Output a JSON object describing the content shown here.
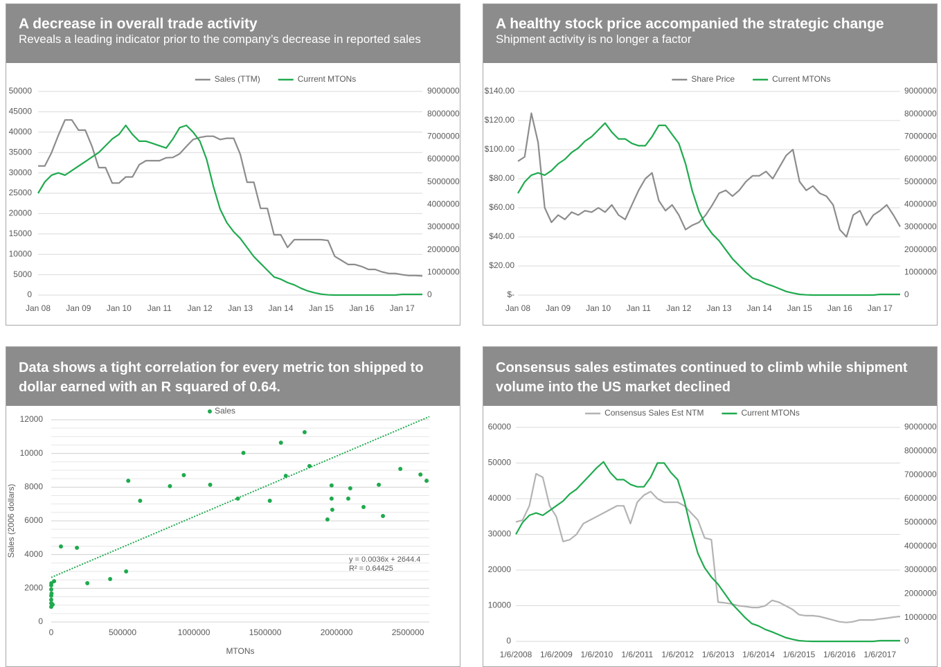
{
  "chart_data": [
    {
      "type": "line",
      "title": "A decrease in overall trade activity",
      "subtitle": "Reveals a leading indicator prior to the company’s decrease in reported sales",
      "categories": [
        "Jan 08",
        null,
        null,
        null,
        null,
        null,
        "Jan 09",
        null,
        null,
        null,
        null,
        null,
        "Jan 10",
        null,
        null,
        null,
        null,
        null,
        "Jan 11",
        null,
        null,
        null,
        null,
        null,
        "Jan 12",
        null,
        null,
        null,
        null,
        null,
        "Jan 13",
        null,
        null,
        null,
        null,
        null,
        "Jan 14",
        null,
        null,
        null,
        null,
        null,
        "Jan 15",
        null,
        null,
        null,
        null,
        null,
        "Jan 16",
        null,
        null,
        null,
        null,
        null,
        "Jan 17",
        null,
        null,
        null
      ],
      "ylim": [
        0,
        50000
      ],
      "yticks": [
        0,
        5000,
        10000,
        15000,
        20000,
        25000,
        30000,
        35000,
        40000,
        45000,
        50000
      ],
      "y2lim": [
        0,
        9000000
      ],
      "y2ticks": [
        0,
        1000000,
        2000000,
        3000000,
        4000000,
        5000000,
        6000000,
        7000000,
        8000000,
        9000000
      ],
      "grid": true,
      "legend": "top",
      "series": [
        {
          "name": "Sales (TTM)",
          "color": "#8c8c8c",
          "values": [
            31700,
            31700,
            35000,
            39200,
            43000,
            43000,
            40500,
            40500,
            36500,
            31300,
            31300,
            27500,
            27500,
            29000,
            29000,
            32000,
            33000,
            33000,
            33000,
            33700,
            33800,
            34700,
            36500,
            38200,
            38700,
            39000,
            39000,
            38200,
            38500,
            38500,
            34500,
            27700,
            27700,
            21300,
            21300,
            14800,
            14800,
            11700,
            13600,
            13600,
            13600,
            13600,
            13600,
            13400,
            9500,
            8500,
            7500,
            7500,
            7000,
            6300,
            6300,
            5700,
            5300,
            5300,
            5000,
            4800,
            4800,
            4700
          ]
        },
        {
          "name": "Current MTONs",
          "color": "#1faa4e",
          "axis": "y2",
          "values": [
            4500000,
            5000000,
            5300000,
            5400000,
            5300000,
            5500000,
            5700000,
            5900000,
            6100000,
            6300000,
            6600000,
            6900000,
            7100000,
            7500000,
            7100000,
            6800000,
            6800000,
            6700000,
            6600000,
            6500000,
            6900000,
            7400000,
            7500000,
            7200000,
            6800000,
            6000000,
            4800000,
            3800000,
            3200000,
            2800000,
            2500000,
            2100000,
            1700000,
            1400000,
            1100000,
            800000,
            700000,
            550000,
            450000,
            300000,
            180000,
            100000,
            40000,
            10000,
            0,
            0,
            0,
            0,
            0,
            0,
            0,
            0,
            0,
            0,
            30000,
            30000,
            30000,
            30000
          ]
        }
      ]
    },
    {
      "type": "line",
      "title": "A healthy stock price accompanied the strategic change",
      "subtitle": "Shipment activity is no longer a factor",
      "categories": [
        "Jan 08",
        null,
        null,
        null,
        null,
        null,
        "Jan 09",
        null,
        null,
        null,
        null,
        null,
        "Jan 10",
        null,
        null,
        null,
        null,
        null,
        "Jan 11",
        null,
        null,
        null,
        null,
        null,
        "Jan 12",
        null,
        null,
        null,
        null,
        null,
        "Jan 13",
        null,
        null,
        null,
        null,
        null,
        "Jan 14",
        null,
        null,
        null,
        null,
        null,
        "Jan 15",
        null,
        null,
        null,
        null,
        null,
        "Jan 16",
        null,
        null,
        null,
        null,
        null,
        "Jan 17",
        null,
        null,
        null
      ],
      "ylim": [
        0,
        140
      ],
      "yticks": [
        {
          "value": 0,
          "label": "$-"
        },
        {
          "value": 20,
          "label": "$20.00"
        },
        {
          "value": 40,
          "label": "$40.00"
        },
        {
          "value": 60,
          "label": "$60.00"
        },
        {
          "value": 80,
          "label": "$80.00"
        },
        {
          "value": 100,
          "label": "$100.00"
        },
        {
          "value": 120,
          "label": "$120.00"
        },
        {
          "value": 140,
          "label": "$140.00"
        }
      ],
      "y2lim": [
        0,
        9000000
      ],
      "y2ticks": [
        0,
        1000000,
        2000000,
        3000000,
        4000000,
        5000000,
        6000000,
        7000000,
        8000000,
        9000000
      ],
      "grid": true,
      "legend": "top",
      "series": [
        {
          "name": "Share Price",
          "color": "#8c8c8c",
          "values": [
            92,
            95,
            125,
            105,
            60,
            50,
            55,
            52,
            57,
            55,
            58,
            57,
            60,
            57,
            62,
            55,
            52,
            62,
            72,
            80,
            84,
            65,
            58,
            62,
            55,
            45,
            48,
            50,
            55,
            62,
            70,
            72,
            68,
            72,
            78,
            82,
            82,
            85,
            80,
            88,
            96,
            100,
            78,
            72,
            75,
            70,
            68,
            62,
            45,
            40,
            55,
            58,
            48,
            55,
            58,
            62,
            55,
            47
          ]
        },
        {
          "name": "Current MTONs",
          "color": "#1faa4e",
          "axis": "y2",
          "values": [
            4500000,
            5000000,
            5300000,
            5400000,
            5300000,
            5500000,
            5800000,
            6000000,
            6300000,
            6500000,
            6800000,
            7000000,
            7300000,
            7600000,
            7200000,
            6900000,
            6900000,
            6700000,
            6600000,
            6600000,
            7000000,
            7500000,
            7500000,
            7100000,
            6700000,
            5800000,
            4600000,
            3700000,
            3100000,
            2700000,
            2400000,
            2000000,
            1600000,
            1300000,
            1000000,
            750000,
            650000,
            500000,
            400000,
            280000,
            160000,
            90000,
            30000,
            10000,
            0,
            0,
            0,
            0,
            0,
            0,
            0,
            0,
            0,
            0,
            30000,
            30000,
            30000,
            30000
          ]
        }
      ]
    },
    {
      "type": "scatter",
      "title": "Data shows a tight correlation for every metric ton shipped to dollar earned with an R squared of 0.64.",
      "x_label": "MTONs",
      "y_label": "Sales (2006 dollars)",
      "xlim": [
        0,
        2650000
      ],
      "xticks": [
        0,
        500000,
        1000000,
        1500000,
        2000000,
        2500000
      ],
      "ylim": [
        0,
        12000
      ],
      "yticks": [
        0,
        2000,
        4000,
        6000,
        8000,
        10000,
        12000
      ],
      "minor_yticks": [
        500,
        1000,
        1500,
        2500,
        3000,
        3500,
        4500,
        5000,
        5500,
        6500,
        7000,
        7500,
        8500,
        9000,
        9500,
        10500,
        11000,
        11500
      ],
      "grid": true,
      "legend": "top",
      "series": [
        {
          "name": "Sales",
          "color": "#1faa4e",
          "x": [
            0,
            0,
            0,
            0,
            0,
            0,
            5000,
            10000,
            2000,
            1000,
            20000,
            68000,
            180000,
            253000,
            413000,
            525000,
            540000,
            623000,
            832000,
            929000,
            1114000,
            1308000,
            1347000,
            1532000,
            1610000,
            1644000,
            1776000,
            1810000,
            1936000,
            1965000,
            1965000,
            1970000,
            2082000,
            2096000,
            2189000,
            2296000,
            2325000,
            2447000,
            2588000,
            2631000
          ],
          "values": [
            2180,
            1930,
            1560,
            1320,
            1110,
            900,
            1070,
            1030,
            1690,
            2300,
            2420,
            4480,
            4400,
            2300,
            2550,
            3000,
            8380,
            7190,
            8060,
            8710,
            8140,
            7320,
            10030,
            7190,
            10640,
            8670,
            11260,
            9250,
            6080,
            8100,
            7320,
            6660,
            7320,
            7930,
            6820,
            8140,
            6290,
            9080,
            8750,
            8380
          ]
        }
      ],
      "trendline": {
        "slope": 0.0036,
        "intercept": 2644.4,
        "label": "y = 0.0036x + 2644.4",
        "r2_label": "R² = 0.64425",
        "color": "#1faa4e"
      }
    },
    {
      "type": "line",
      "title": "Consensus sales estimates continued to climb while shipment volume into the US market declined",
      "categories": [
        "1/6/2008",
        null,
        null,
        null,
        null,
        null,
        "1/6/2009",
        null,
        null,
        null,
        null,
        null,
        "1/6/2010",
        null,
        null,
        null,
        null,
        null,
        "1/6/2011",
        null,
        null,
        null,
        null,
        null,
        "1/6/2012",
        null,
        null,
        null,
        null,
        null,
        "1/6/2013",
        null,
        null,
        null,
        null,
        null,
        "1/6/2014",
        null,
        null,
        null,
        null,
        null,
        "1/6/2015",
        null,
        null,
        null,
        null,
        null,
        "1/6/2016",
        null,
        null,
        null,
        null,
        null,
        "1/6/2017",
        null,
        null,
        null
      ],
      "ylim": [
        0,
        60000
      ],
      "yticks": [
        0,
        10000,
        20000,
        30000,
        40000,
        50000,
        60000
      ],
      "y2lim": [
        0,
        9000000
      ],
      "y2ticks": [
        0,
        1000000,
        2000000,
        3000000,
        4000000,
        5000000,
        6000000,
        7000000,
        8000000,
        9000000
      ],
      "grid": true,
      "legend": "top",
      "series": [
        {
          "name": "Consensus Sales Est NTM",
          "color": "#b3b3b3",
          "values": [
            33500,
            34000,
            38000,
            47000,
            46000,
            38000,
            35000,
            28000,
            28500,
            30000,
            33000,
            34000,
            35000,
            36000,
            37000,
            38000,
            38000,
            33000,
            39000,
            41000,
            42000,
            40000,
            39000,
            39000,
            39000,
            38000,
            36000,
            34000,
            29000,
            28500,
            11000,
            10800,
            10500,
            10000,
            9800,
            9500,
            9500,
            10000,
            11500,
            11000,
            10000,
            9000,
            7500,
            7200,
            7200,
            7000,
            6500,
            6000,
            5500,
            5300,
            5500,
            6000,
            6000,
            6000,
            6300,
            6500,
            6800,
            7000
          ]
        },
        {
          "name": "Current MTONs",
          "color": "#1faa4e",
          "axis": "y2",
          "values": [
            4500000,
            5000000,
            5300000,
            5400000,
            5300000,
            5500000,
            5700000,
            5900000,
            6200000,
            6400000,
            6700000,
            7000000,
            7300000,
            7550000,
            7100000,
            6800000,
            6800000,
            6600000,
            6500000,
            6500000,
            6900000,
            7500000,
            7500000,
            7100000,
            6800000,
            5900000,
            4700000,
            3700000,
            3100000,
            2700000,
            2400000,
            2000000,
            1600000,
            1300000,
            1000000,
            750000,
            650000,
            500000,
            400000,
            280000,
            160000,
            90000,
            30000,
            10000,
            0,
            0,
            0,
            0,
            0,
            0,
            0,
            0,
            0,
            0,
            30000,
            30000,
            30000,
            30000
          ]
        }
      ]
    }
  ]
}
